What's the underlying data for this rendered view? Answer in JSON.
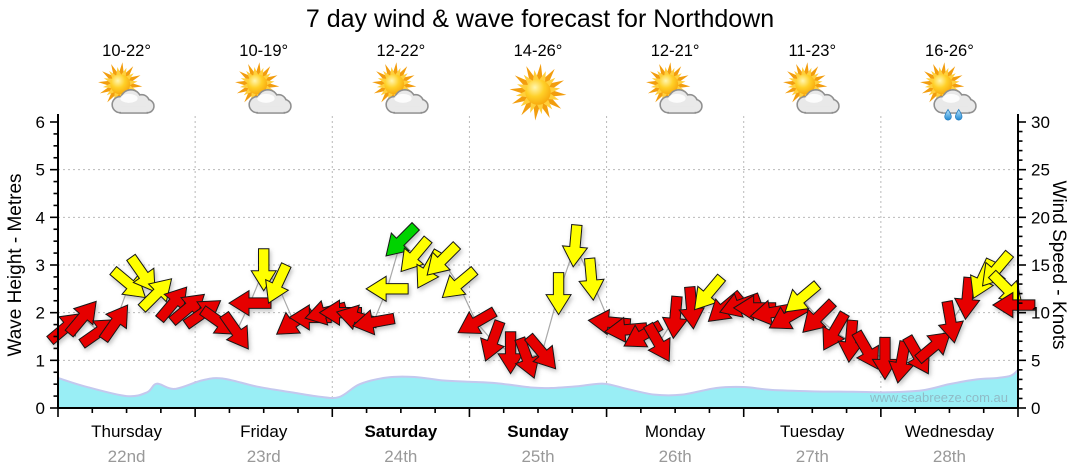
{
  "title": "7 day wind & wave forecast for Northdown",
  "watermark": "www.seabreeze.com.au",
  "days": [
    {
      "name": "Thursday",
      "date": "22nd",
      "temps": "10-22°",
      "icon": "partly-cloudy",
      "weekend": false
    },
    {
      "name": "Friday",
      "date": "23rd",
      "temps": "10-19°",
      "icon": "partly-cloudy",
      "weekend": false
    },
    {
      "name": "Saturday",
      "date": "24th",
      "temps": "12-22°",
      "icon": "partly-cloudy",
      "weekend": true
    },
    {
      "name": "Sunday",
      "date": "25th",
      "temps": "14-26°",
      "icon": "sunny",
      "weekend": true
    },
    {
      "name": "Monday",
      "date": "26th",
      "temps": "12-21°",
      "icon": "partly-cloudy",
      "weekend": false
    },
    {
      "name": "Tuesday",
      "date": "27th",
      "temps": "11-23°",
      "icon": "partly-cloudy-rain-none",
      "weekend": false
    },
    {
      "name": "Wednesday",
      "date": "28th",
      "temps": "16-26°",
      "icon": "partly-cloudy-rain",
      "weekend": false
    }
  ],
  "chart_data": {
    "type": "line",
    "title": "7 day wind & wave forecast for Northdown",
    "left_axis": {
      "label": "Wave Height - Metres",
      "min": 0,
      "max": 6,
      "major_ticks": [
        0,
        1,
        2,
        3,
        4,
        5,
        6
      ],
      "minor_step": 0.25
    },
    "right_axis": {
      "label": "Wind Speed - Knots",
      "min": 0,
      "max": 30,
      "major_ticks": [
        0,
        5,
        10,
        15,
        20,
        25,
        30
      ],
      "minor_step": 1
    },
    "x_axis": {
      "categories": [
        "Thursday",
        "Friday",
        "Saturday",
        "Sunday",
        "Monday",
        "Tuesday",
        "Wednesday"
      ],
      "dates": [
        "22nd",
        "23rd",
        "24th",
        "25th",
        "26th",
        "27th",
        "28th"
      ]
    },
    "grid": true,
    "legend": "none",
    "arrow_colors": {
      "red": "#e60000",
      "yellow": "#ffff00",
      "green": "#00d300"
    },
    "wave_color": "#99eef5",
    "wave_stroke": "#c4c8ee",
    "series": [
      {
        "name": "Wind Speed & Direction",
        "units": "knots",
        "point_format": [
          "day_fraction",
          "knots",
          "arrow_direction_deg_0E_90S",
          "color"
        ],
        "points": [
          [
            0.06,
            8.5,
            -40,
            "red"
          ],
          [
            0.18,
            9.5,
            -50,
            "red"
          ],
          [
            0.3,
            8.0,
            -35,
            "red"
          ],
          [
            0.42,
            9.0,
            -55,
            "red"
          ],
          [
            0.52,
            13.0,
            40,
            "yellow"
          ],
          [
            0.62,
            14.0,
            55,
            "yellow"
          ],
          [
            0.72,
            12.0,
            -45,
            "yellow"
          ],
          [
            0.84,
            11.0,
            -50,
            "red"
          ],
          [
            0.95,
            10.5,
            -40,
            "red"
          ],
          [
            1.06,
            10.0,
            -35,
            "red"
          ],
          [
            1.18,
            9.0,
            35,
            "red"
          ],
          [
            1.3,
            8.0,
            55,
            "red"
          ],
          [
            1.4,
            11.0,
            180,
            "red"
          ],
          [
            1.5,
            14.5,
            90,
            "yellow"
          ],
          [
            1.6,
            13.0,
            115,
            "yellow"
          ],
          [
            1.72,
            9.0,
            145,
            "red"
          ],
          [
            1.84,
            9.5,
            180,
            "red"
          ],
          [
            1.95,
            10.0,
            165,
            "red"
          ],
          [
            2.06,
            10.0,
            180,
            "red"
          ],
          [
            2.18,
            9.5,
            195,
            "red"
          ],
          [
            2.3,
            9.0,
            170,
            "red"
          ],
          [
            2.4,
            12.5,
            180,
            "yellow"
          ],
          [
            2.5,
            17.5,
            135,
            "green"
          ],
          [
            2.6,
            16.0,
            130,
            "yellow"
          ],
          [
            2.7,
            14.5,
            120,
            "yellow"
          ],
          [
            2.8,
            15.5,
            135,
            "yellow"
          ],
          [
            2.92,
            13.0,
            140,
            "yellow"
          ],
          [
            3.05,
            9.0,
            150,
            "red"
          ],
          [
            3.17,
            7.0,
            110,
            "red"
          ],
          [
            3.3,
            5.8,
            90,
            "red"
          ],
          [
            3.42,
            5.2,
            70,
            "red"
          ],
          [
            3.53,
            5.8,
            50,
            "red"
          ],
          [
            3.65,
            12.0,
            90,
            "yellow"
          ],
          [
            3.77,
            17.0,
            95,
            "yellow"
          ],
          [
            3.89,
            13.5,
            85,
            "yellow"
          ],
          [
            4.02,
            9.0,
            185,
            "red"
          ],
          [
            4.14,
            8.2,
            175,
            "red"
          ],
          [
            4.26,
            7.6,
            150,
            "red"
          ],
          [
            4.38,
            6.8,
            60,
            "red"
          ],
          [
            4.5,
            9.5,
            95,
            "red"
          ],
          [
            4.62,
            10.5,
            85,
            "red"
          ],
          [
            4.74,
            12.0,
            130,
            "yellow"
          ],
          [
            4.86,
            10.5,
            140,
            "red"
          ],
          [
            4.97,
            10.8,
            160,
            "red"
          ],
          [
            5.08,
            10.5,
            180,
            "red"
          ],
          [
            5.2,
            10.0,
            170,
            "red"
          ],
          [
            5.32,
            9.5,
            150,
            "red"
          ],
          [
            5.42,
            11.5,
            140,
            "yellow"
          ],
          [
            5.54,
            9.5,
            135,
            "red"
          ],
          [
            5.66,
            8.0,
            120,
            "red"
          ],
          [
            5.78,
            7.0,
            95,
            "red"
          ],
          [
            5.9,
            6.0,
            60,
            "red"
          ],
          [
            6.03,
            5.2,
            90,
            "red"
          ],
          [
            6.15,
            4.8,
            100,
            "red"
          ],
          [
            6.27,
            5.5,
            60,
            "red"
          ],
          [
            6.39,
            6.5,
            -40,
            "red"
          ],
          [
            6.51,
            9.0,
            80,
            "red"
          ],
          [
            6.63,
            11.5,
            95,
            "red"
          ],
          [
            6.74,
            13.5,
            115,
            "yellow"
          ],
          [
            6.84,
            14.5,
            130,
            "yellow"
          ],
          [
            6.92,
            12.5,
            45,
            "yellow"
          ],
          [
            6.97,
            10.8,
            180,
            "red"
          ]
        ]
      },
      {
        "name": "Wave Height",
        "units": "metres",
        "point_format": [
          "day_fraction",
          "metres"
        ],
        "points": [
          [
            0,
            0.63
          ],
          [
            0.2,
            0.45
          ],
          [
            0.5,
            0.25
          ],
          [
            0.65,
            0.33
          ],
          [
            0.72,
            0.51
          ],
          [
            0.85,
            0.4
          ],
          [
            1.05,
            0.58
          ],
          [
            1.2,
            0.62
          ],
          [
            1.45,
            0.45
          ],
          [
            1.7,
            0.33
          ],
          [
            1.9,
            0.24
          ],
          [
            2.05,
            0.23
          ],
          [
            2.2,
            0.5
          ],
          [
            2.4,
            0.64
          ],
          [
            2.6,
            0.65
          ],
          [
            2.8,
            0.58
          ],
          [
            3.0,
            0.55
          ],
          [
            3.2,
            0.52
          ],
          [
            3.45,
            0.43
          ],
          [
            3.6,
            0.42
          ],
          [
            3.8,
            0.46
          ],
          [
            3.98,
            0.51
          ],
          [
            4.15,
            0.4
          ],
          [
            4.35,
            0.28
          ],
          [
            4.55,
            0.28
          ],
          [
            4.8,
            0.42
          ],
          [
            5.0,
            0.44
          ],
          [
            5.2,
            0.38
          ],
          [
            5.5,
            0.35
          ],
          [
            5.8,
            0.34
          ],
          [
            6.05,
            0.33
          ],
          [
            6.3,
            0.37
          ],
          [
            6.5,
            0.5
          ],
          [
            6.7,
            0.6
          ],
          [
            6.85,
            0.63
          ],
          [
            6.95,
            0.68
          ],
          [
            7.0,
            0.8
          ]
        ]
      }
    ]
  }
}
